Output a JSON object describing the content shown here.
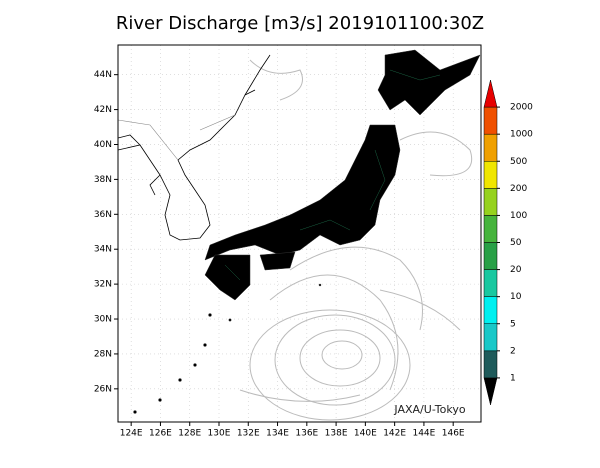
{
  "title": "River Discharge [m3/s] 2019101100:30Z",
  "map": {
    "lonlim": [
      123.1,
      147.9
    ],
    "latlim": [
      24.1,
      45.7
    ],
    "lon_ticks": [
      {
        "value": 124,
        "label": "124E"
      },
      {
        "value": 126,
        "label": "126E"
      },
      {
        "value": 128,
        "label": "128E"
      },
      {
        "value": 130,
        "label": "130E"
      },
      {
        "value": 132,
        "label": "132E"
      },
      {
        "value": 134,
        "label": "134E"
      },
      {
        "value": 136,
        "label": "136E"
      },
      {
        "value": 138,
        "label": "138E"
      },
      {
        "value": 140,
        "label": "140E"
      },
      {
        "value": 142,
        "label": "142E"
      },
      {
        "value": 144,
        "label": "144E"
      },
      {
        "value": 146,
        "label": "146E"
      }
    ],
    "lat_ticks": [
      {
        "value": 26,
        "label": "26N"
      },
      {
        "value": 28,
        "label": "28N"
      },
      {
        "value": 30,
        "label": "30N"
      },
      {
        "value": 32,
        "label": "32N"
      },
      {
        "value": 34,
        "label": "34N"
      },
      {
        "value": 36,
        "label": "36N"
      },
      {
        "value": 38,
        "label": "38N"
      },
      {
        "value": 40,
        "label": "40N"
      },
      {
        "value": 42,
        "label": "42N"
      },
      {
        "value": 44,
        "label": "44N"
      }
    ]
  },
  "colorbar": {
    "levels": [
      1,
      2,
      5,
      10,
      20,
      50,
      100,
      200,
      500,
      1000,
      2000
    ],
    "colors": [
      "#000000",
      "#1e5a5a",
      "#19c8c8",
      "#00f0f0",
      "#19c8a0",
      "#28a046",
      "#46b43c",
      "#96d21e",
      "#f0e600",
      "#f0a000",
      "#f05000",
      "#e60000"
    ]
  },
  "credit": "JAXA/U-Tokyo"
}
